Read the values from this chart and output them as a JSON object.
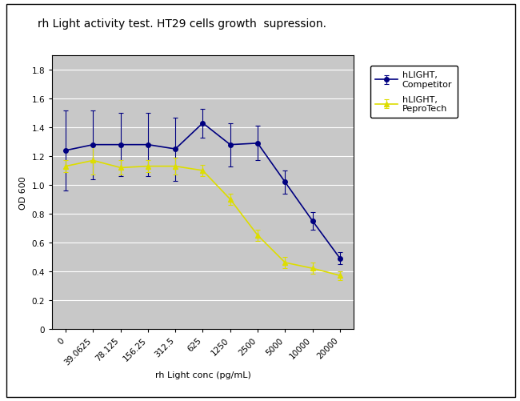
{
  "title": "rh Light activity test. HT29 cells growth  supression.",
  "xlabel": "rh Light conc (pg/mL)",
  "ylabel": "OD 600",
  "x_labels": [
    "0",
    "39.0625",
    "78.125",
    "156.25",
    "312.5",
    "625",
    "1250",
    "2500",
    "5000",
    "10000",
    "20000"
  ],
  "competitor_y": [
    1.24,
    1.28,
    1.28,
    1.28,
    1.25,
    1.43,
    1.28,
    1.29,
    1.02,
    0.75,
    0.49
  ],
  "competitor_yerr": [
    0.28,
    0.24,
    0.22,
    0.22,
    0.22,
    0.1,
    0.15,
    0.12,
    0.08,
    0.06,
    0.04
  ],
  "peprotech_y": [
    1.13,
    1.17,
    1.12,
    1.13,
    1.13,
    1.1,
    0.9,
    0.65,
    0.46,
    0.42,
    0.37
  ],
  "peprotech_yerr": [
    0.04,
    0.1,
    0.05,
    0.04,
    0.06,
    0.04,
    0.04,
    0.04,
    0.04,
    0.04,
    0.03
  ],
  "competitor_color": "#000080",
  "peprotech_color": "#DDDD00",
  "plot_bg_color": "#C8C8C8",
  "fig_bg_color": "#FFFFFF",
  "ylim": [
    0,
    1.9
  ],
  "yticks": [
    0,
    0.2,
    0.4,
    0.6,
    0.8,
    1.0,
    1.2,
    1.4,
    1.6,
    1.8
  ],
  "legend_label_competitor": "hLIGHT,\nCompetitor",
  "legend_label_peprotech": "hLIGHT,\nPeproTech",
  "title_fontsize": 10,
  "axis_label_fontsize": 8,
  "tick_fontsize": 7.5,
  "legend_fontsize": 8
}
